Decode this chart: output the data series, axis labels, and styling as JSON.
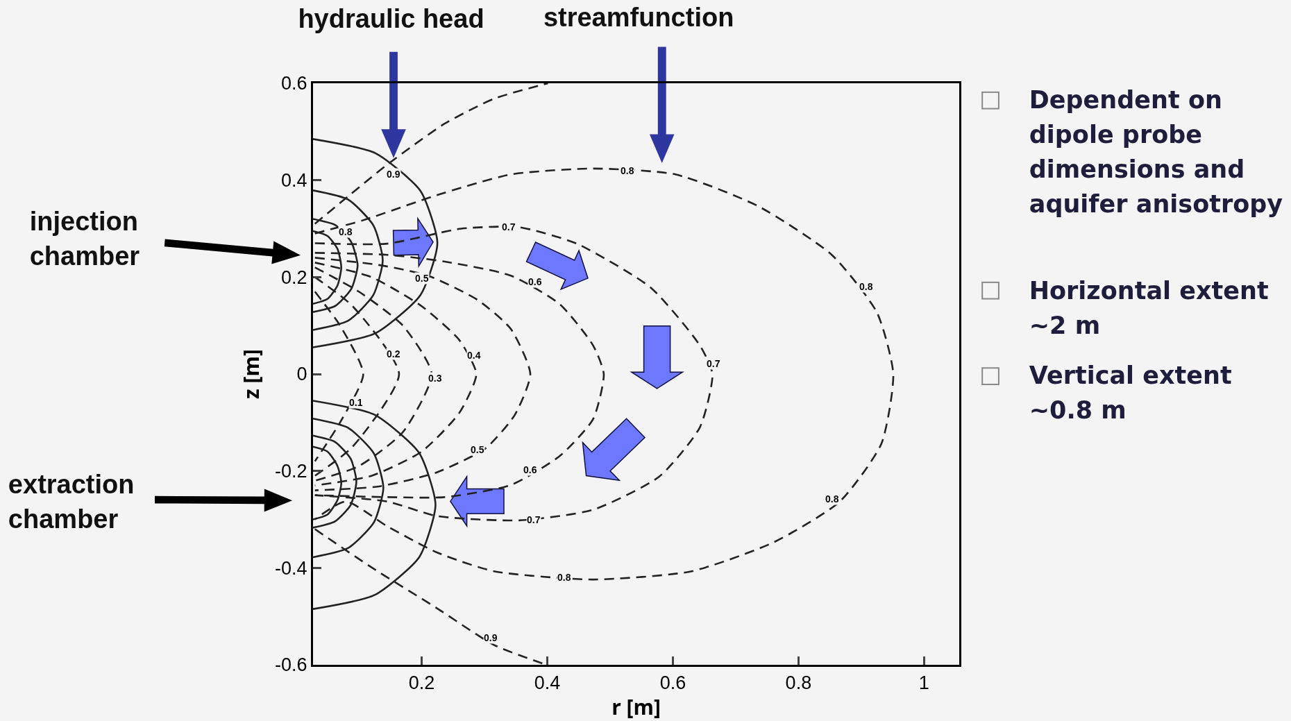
{
  "chart_data": {
    "type": "line",
    "xlabel": "r [m]",
    "ylabel": "z [m]",
    "xlim": [
      0.027,
      1.056
    ],
    "ylim": [
      -0.6,
      0.6
    ],
    "xticks": [
      0.2,
      0.4,
      0.6,
      0.8,
      1
    ],
    "yticks": [
      -0.6,
      -0.4,
      -0.2,
      0,
      0.2,
      0.4,
      0.6
    ],
    "series": [
      {
        "color": "#222222",
        "line_style": "dashed",
        "x": [
          0.03,
          0.07,
          0.107,
          0.07,
          0.03
        ],
        "values": [
          0.17,
          0.1,
          0,
          -0.1,
          -0.18
        ]
      },
      {
        "color": "#222222",
        "line_style": "dashed",
        "x": [
          0.03,
          0.09,
          0.164,
          0.09,
          0.03
        ],
        "values": [
          0.2,
          0.14,
          0,
          -0.15,
          -0.21
        ]
      },
      {
        "color": "#222222",
        "line_style": "dashed",
        "x": [
          0.03,
          0.1,
          0.17,
          0.216,
          0.17,
          0.1,
          0.03
        ],
        "values": [
          0.22,
          0.17,
          0.1,
          0,
          -0.12,
          -0.19,
          -0.22
        ]
      },
      {
        "color": "#222222",
        "line_style": "dashed",
        "x": [
          0.03,
          0.12,
          0.2,
          0.26,
          0.287,
          0.26,
          0.2,
          0.12,
          0.03
        ],
        "values": [
          0.23,
          0.2,
          0.14,
          0.07,
          0,
          -0.08,
          -0.16,
          -0.21,
          -0.23
        ]
      },
      {
        "color": "#222222",
        "line_style": "dashed",
        "x": [
          0.03,
          0.132,
          0.21,
          0.289,
          0.342,
          0.373,
          0.348,
          0.302,
          0.224,
          0.132,
          0.03
        ],
        "values": [
          0.24,
          0.225,
          0.203,
          0.153,
          0.093,
          0,
          -0.085,
          -0.153,
          -0.203,
          -0.232,
          -0.24
        ]
      },
      {
        "color": "#222222",
        "line_style": "dashed",
        "x": [
          0.03,
          0.145,
          0.237,
          0.342,
          0.42,
          0.473,
          0.49,
          0.473,
          0.42,
          0.342,
          0.237,
          0.145,
          0.03
        ],
        "values": [
          0.25,
          0.246,
          0.232,
          0.203,
          0.144,
          0.059,
          0,
          -0.093,
          -0.169,
          -0.229,
          -0.254,
          -0.254,
          -0.25
        ]
      },
      {
        "color": "#222222",
        "line_style": "dashed",
        "x": [
          0.03,
          0.145,
          0.263,
          0.355,
          0.447,
          0.565,
          0.643,
          0.663,
          0.643,
          0.578,
          0.473,
          0.355,
          0.224,
          0.145,
          0.03
        ],
        "values": [
          0.27,
          0.269,
          0.3,
          0.303,
          0.269,
          0.178,
          0.059,
          0,
          -0.11,
          -0.212,
          -0.28,
          -0.302,
          -0.293,
          -0.263,
          -0.25
        ]
      },
      {
        "color": "#222222",
        "line_style": "dashed",
        "x": [
          0.03,
          0.106,
          0.224,
          0.342,
          0.473,
          0.604,
          0.735,
          0.853,
          0.925,
          0.951,
          0.932,
          0.866,
          0.761,
          0.63,
          0.473,
          0.315,
          0.224,
          0.145,
          0.079,
          0.03
        ],
        "values": [
          0.29,
          0.317,
          0.369,
          0.412,
          0.424,
          0.412,
          0.347,
          0.246,
          0.127,
          0,
          -0.144,
          -0.263,
          -0.347,
          -0.407,
          -0.424,
          -0.407,
          -0.368,
          -0.314,
          -0.263,
          -0.3
        ]
      },
      {
        "color": "#222222",
        "line_style": "dashed",
        "x": [
          0.03,
          0.145,
          0.237,
          0.315,
          0.401,
          null,
          0.03,
          0.119,
          0.224,
          0.315,
          0.394
        ],
        "values": [
          0.31,
          0.432,
          0.517,
          0.568,
          0.6,
          null,
          -0.32,
          -0.398,
          -0.483,
          -0.559,
          -0.598
        ]
      },
      {
        "color": "#222222",
        "line_style": "solid",
        "x": [
          0.027,
          0.126,
          0.198,
          0.225,
          0.198,
          0.126,
          0.027
        ],
        "values": [
          0.485,
          0.456,
          0.378,
          0.27,
          0.163,
          0.084,
          0.055
        ]
      },
      {
        "color": "#222222",
        "line_style": "solid",
        "x": [
          0.027,
          0.083,
          0.123,
          0.138,
          0.123,
          0.083,
          0.027
        ],
        "values": [
          0.379,
          0.36,
          0.307,
          0.235,
          0.163,
          0.11,
          0.091
        ]
      },
      {
        "color": "#222222",
        "line_style": "solid",
        "x": [
          0.027,
          0.063,
          0.088,
          0.098,
          0.088,
          0.063,
          0.027
        ],
        "values": [
          0.32,
          0.307,
          0.272,
          0.224,
          0.176,
          0.141,
          0.128
        ]
      },
      {
        "color": "#222222",
        "line_style": "solid",
        "x": [
          0.027,
          0.05,
          0.066,
          0.072,
          0.066,
          0.05,
          0.027
        ],
        "values": [
          0.295,
          0.285,
          0.258,
          0.22,
          0.183,
          0.155,
          0.145
        ]
      },
      {
        "color": "#222222",
        "line_style": "solid",
        "x": [
          0.027,
          0.125,
          0.196,
          0.222,
          0.196,
          0.125,
          0.027
        ],
        "values": [
          -0.055,
          -0.084,
          -0.163,
          -0.27,
          -0.378,
          -0.456,
          -0.485
        ]
      },
      {
        "color": "#222222",
        "line_style": "solid",
        "x": [
          0.027,
          0.083,
          0.124,
          0.139,
          0.124,
          0.083,
          0.027
        ],
        "values": [
          -0.092,
          -0.111,
          -0.164,
          -0.235,
          -0.306,
          -0.359,
          -0.378
        ]
      },
      {
        "color": "#222222",
        "line_style": "solid",
        "x": [
          0.027,
          0.062,
          0.087,
          0.096,
          0.087,
          0.062,
          0.027
        ],
        "values": [
          -0.127,
          -0.14,
          -0.175,
          -0.222,
          -0.27,
          -0.304,
          -0.317
        ]
      },
      {
        "color": "#222222",
        "line_style": "solid",
        "x": [
          0.027,
          0.05,
          0.066,
          0.072,
          0.066,
          0.05,
          0.027
        ],
        "values": [
          -0.15,
          -0.16,
          -0.19,
          -0.225,
          -0.26,
          -0.29,
          -0.3
        ]
      }
    ],
    "annotations": [
      "hydraulic head",
      "streamfunction",
      "injection chamber",
      "extraction chamber",
      "Dependent on dipole probe dimensions and aquifer anisotropy",
      "Horizontal extent ~2 m",
      "Vertical extent ~0.8 m",
      {
        "text": "0.9",
        "x": 0.155,
        "y": 0.412
      },
      {
        "text": "0.8",
        "x": 0.528,
        "y": 0.419
      },
      {
        "text": "0.8",
        "x": 0.908,
        "y": 0.181
      },
      {
        "text": "0.8",
        "x": 0.079,
        "y": 0.293
      },
      {
        "text": "0.7",
        "x": 0.339,
        "y": 0.303
      },
      {
        "text": "0.7",
        "x": 0.665,
        "y": 0.022
      },
      {
        "text": "0.7",
        "x": 0.378,
        "y": -0.3
      },
      {
        "text": "0.6",
        "x": 0.381,
        "y": 0.19
      },
      {
        "text": "0.6",
        "x": 0.373,
        "y": -0.198
      },
      {
        "text": "0.5",
        "x": 0.2,
        "y": 0.198
      },
      {
        "text": "0.5",
        "x": 0.289,
        "y": -0.156
      },
      {
        "text": "0.4",
        "x": 0.283,
        "y": 0.039
      },
      {
        "text": "0.3",
        "x": 0.221,
        "y": -0.008
      },
      {
        "text": "0.2",
        "x": 0.155,
        "y": 0.042
      },
      {
        "text": "0.1",
        "x": 0.096,
        "y": -0.059
      },
      {
        "text": "0.8",
        "x": 0.427,
        "y": -0.42
      },
      {
        "text": "0.8",
        "x": 0.854,
        "y": -0.258
      },
      {
        "text": "0.9",
        "x": 0.31,
        "y": -0.544
      }
    ]
  }
}
